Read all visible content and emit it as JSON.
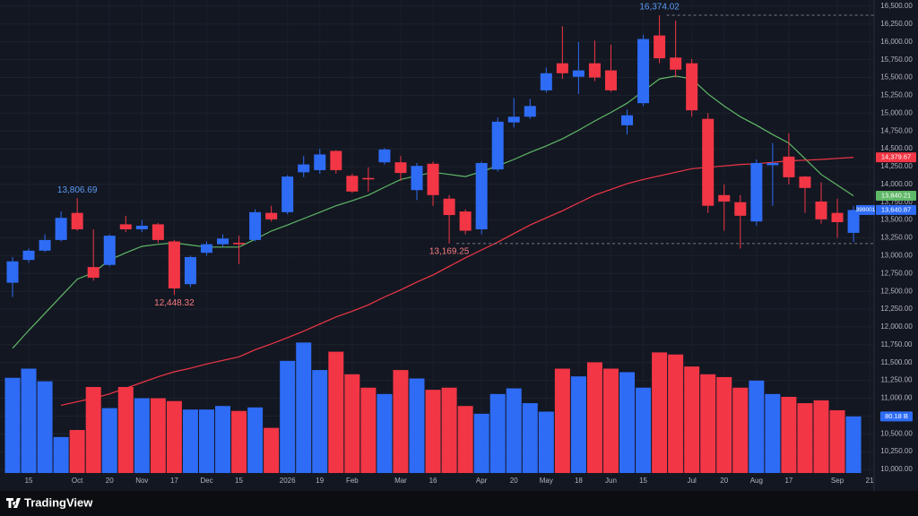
{
  "chart_data": {
    "type": "candlestick",
    "symbol": "399001",
    "brand": "TradingView",
    "categories": [
      null,
      "15",
      null,
      null,
      "Oct",
      null,
      "20",
      null,
      "Nov",
      null,
      "17",
      null,
      "Dec",
      null,
      "15",
      null,
      null,
      "2026",
      null,
      "19",
      null,
      "Feb",
      null,
      null,
      "Mar",
      null,
      "16",
      null,
      null,
      "Apr",
      null,
      "20",
      null,
      "May",
      null,
      "18",
      null,
      "Jun",
      null,
      "15",
      null,
      null,
      "Jul",
      null,
      "20",
      null,
      "Aug",
      null,
      "17",
      null,
      null,
      "Sep",
      null,
      "21"
    ],
    "open": [
      12620,
      12940,
      13070,
      13220,
      13600,
      12840,
      12870,
      13440,
      13370,
      13440,
      13200,
      12600,
      13040,
      13160,
      13180,
      13220,
      13600,
      13610,
      14170,
      14200,
      14470,
      14120,
      14090,
      14310,
      14310,
      13920,
      14290,
      13800,
      13620,
      13370,
      14210,
      14870,
      14950,
      15320,
      15700,
      15510,
      15700,
      15600,
      14830,
      15140,
      16090,
      15780,
      15700,
      14920,
      13850,
      13750,
      13480,
      14270,
      14390,
      14110,
      13760,
      13600,
      13320,
      null
    ],
    "high": [
      12980,
      13100,
      13300,
      13620,
      13806.69,
      13370,
      13300,
      13560,
      13500,
      13460,
      13220,
      13000,
      13200,
      13300,
      13280,
      13650,
      13700,
      14130,
      14400,
      14500,
      14480,
      14150,
      14240,
      14510,
      14400,
      14300,
      14320,
      13850,
      13650,
      14320,
      14940,
      15210,
      15200,
      15640,
      16220,
      16000,
      16020,
      15960,
      15050,
      16100,
      16374.02,
      16300,
      15760,
      15000,
      14000,
      13850,
      14350,
      14580,
      14720,
      14120,
      14030,
      13800,
      13700,
      null
    ],
    "low": [
      12420,
      12900,
      13050,
      13200,
      13350,
      12650,
      12850,
      13330,
      13330,
      13180,
      12448.32,
      12560,
      13000,
      13130,
      12880,
      13200,
      13480,
      13580,
      14100,
      14150,
      14150,
      13880,
      13900,
      14280,
      14050,
      13780,
      13700,
      13169.25,
      13300,
      13300,
      14180,
      14800,
      14920,
      15290,
      15480,
      15270,
      15450,
      15300,
      14700,
      15100,
      15700,
      15500,
      14950,
      13600,
      13350,
      13100,
      13420,
      13700,
      14000,
      13600,
      13450,
      13250,
      13190,
      null
    ],
    "close": [
      12920,
      13070,
      13220,
      13530,
      13370,
      12690,
      13280,
      13370,
      13420,
      13220,
      12540,
      12980,
      13160,
      13240,
      13160,
      13610,
      13510,
      14110,
      14280,
      14420,
      14200,
      13900,
      14070,
      14490,
      14160,
      14260,
      13850,
      13570,
      13350,
      14300,
      14880,
      14950,
      15100,
      15560,
      15560,
      15600,
      15500,
      15320,
      14970,
      16040,
      15770,
      15610,
      15040,
      13700,
      13760,
      13560,
      14300,
      14300,
      14100,
      13950,
      13510,
      13470,
      13640.87,
      null
    ],
    "close_label": "13,640.87",
    "up_color": "#2e6cf5",
    "down_color": "#f23645",
    "volume": [
      135,
      148,
      130,
      51,
      61,
      122,
      92,
      122,
      106,
      106,
      102,
      90,
      90,
      95,
      88,
      93,
      64,
      159,
      185,
      146,
      172,
      140,
      121,
      112,
      146,
      134,
      118,
      121,
      95,
      84,
      112,
      120,
      99,
      87,
      148,
      137,
      157,
      148,
      143,
      121,
      171,
      168,
      151,
      140,
      136,
      121,
      131,
      112,
      108,
      99,
      103,
      89,
      80.18,
      null
    ],
    "volume_label": "80.18 B",
    "vlim": [
      0,
      188
    ],
    "series": [
      {
        "name": "MA short",
        "color": "#5fb867",
        "last_value_label": "13,840.21",
        "values": [
          11700,
          11950,
          12190,
          12430,
          12670,
          12760,
          12940,
          13040,
          13130,
          13160,
          13180,
          13150,
          13120,
          13120,
          13120,
          13230,
          13345,
          13430,
          13520,
          13610,
          13700,
          13770,
          13850,
          13960,
          14070,
          14120,
          14170,
          14140,
          14110,
          14180,
          14260,
          14350,
          14450,
          14540,
          14640,
          14760,
          14890,
          15010,
          15140,
          15310,
          15480,
          15520,
          15480,
          15270,
          15100,
          14950,
          14830,
          14700,
          14580,
          14360,
          14140,
          13990,
          13840.21,
          null
        ]
      },
      {
        "name": "MA long",
        "color": "#f23645",
        "last_value_label": "14,379.67",
        "values": [
          null,
          null,
          null,
          10900,
          10950,
          11000,
          11060,
          11140,
          11220,
          11300,
          11370,
          11420,
          11480,
          11530,
          11580,
          11680,
          11760,
          11850,
          11940,
          12040,
          12140,
          12220,
          12310,
          12420,
          12520,
          12630,
          12730,
          12850,
          12970,
          13080,
          13190,
          13310,
          13430,
          13530,
          13630,
          13740,
          13850,
          13930,
          14010,
          14070,
          14120,
          14170,
          14220,
          14240,
          14260,
          14280,
          14290,
          14310,
          14330,
          14340,
          14350,
          14365,
          14379.67,
          null
        ]
      }
    ],
    "annotations": [
      {
        "value": 16374.02,
        "label": "16,374.02",
        "dashed": true
      },
      {
        "value": 13806.69,
        "label": "13,806.69",
        "dashed": false
      },
      {
        "value": 12448.32,
        "label": "12,448.32",
        "dashed": false
      },
      {
        "value": 13169.25,
        "label": "13,169.25",
        "dashed": true
      }
    ],
    "ylim": [
      10000,
      16500
    ],
    "yticks": [
      {
        "value": 10000,
        "label": "10,000.00"
      },
      {
        "value": 10250,
        "label": "10,250.00"
      },
      {
        "value": 10500,
        "label": "10,500.00"
      },
      {
        "value": 10750,
        "label": "10,750.00"
      },
      {
        "value": 11000,
        "label": "11,000.00"
      },
      {
        "value": 11250,
        "label": "11,250.00"
      },
      {
        "value": 11500,
        "label": "11,500.00"
      },
      {
        "value": 11750,
        "label": "11,750.00"
      },
      {
        "value": 12000,
        "label": "12,000.00"
      },
      {
        "value": 12250,
        "label": "12,250.00"
      },
      {
        "value": 12500,
        "label": "12,500.00"
      },
      {
        "value": 12750,
        "label": "12,750.00"
      },
      {
        "value": 13000,
        "label": "13,000.00"
      },
      {
        "value": 13250,
        "label": "13,250.00"
      },
      {
        "value": 13500,
        "label": "13,500.00"
      },
      {
        "value": 13750,
        "label": "13,750.00"
      },
      {
        "value": 14000,
        "label": "14,000.00"
      },
      {
        "value": 14250,
        "label": "14,250.00"
      },
      {
        "value": 14500,
        "label": "14,500.00"
      },
      {
        "value": 14750,
        "label": "14,750.00"
      },
      {
        "value": 15000,
        "label": "15,000.00"
      },
      {
        "value": 15250,
        "label": "15,250.00"
      },
      {
        "value": 15500,
        "label": "15,500.00"
      },
      {
        "value": 15750,
        "label": "15,750.00"
      },
      {
        "value": 16000,
        "label": "16,000.00"
      },
      {
        "value": 16250,
        "label": "16,250.00"
      },
      {
        "value": 16500,
        "label": "16,500.00"
      }
    ],
    "grid": true
  }
}
